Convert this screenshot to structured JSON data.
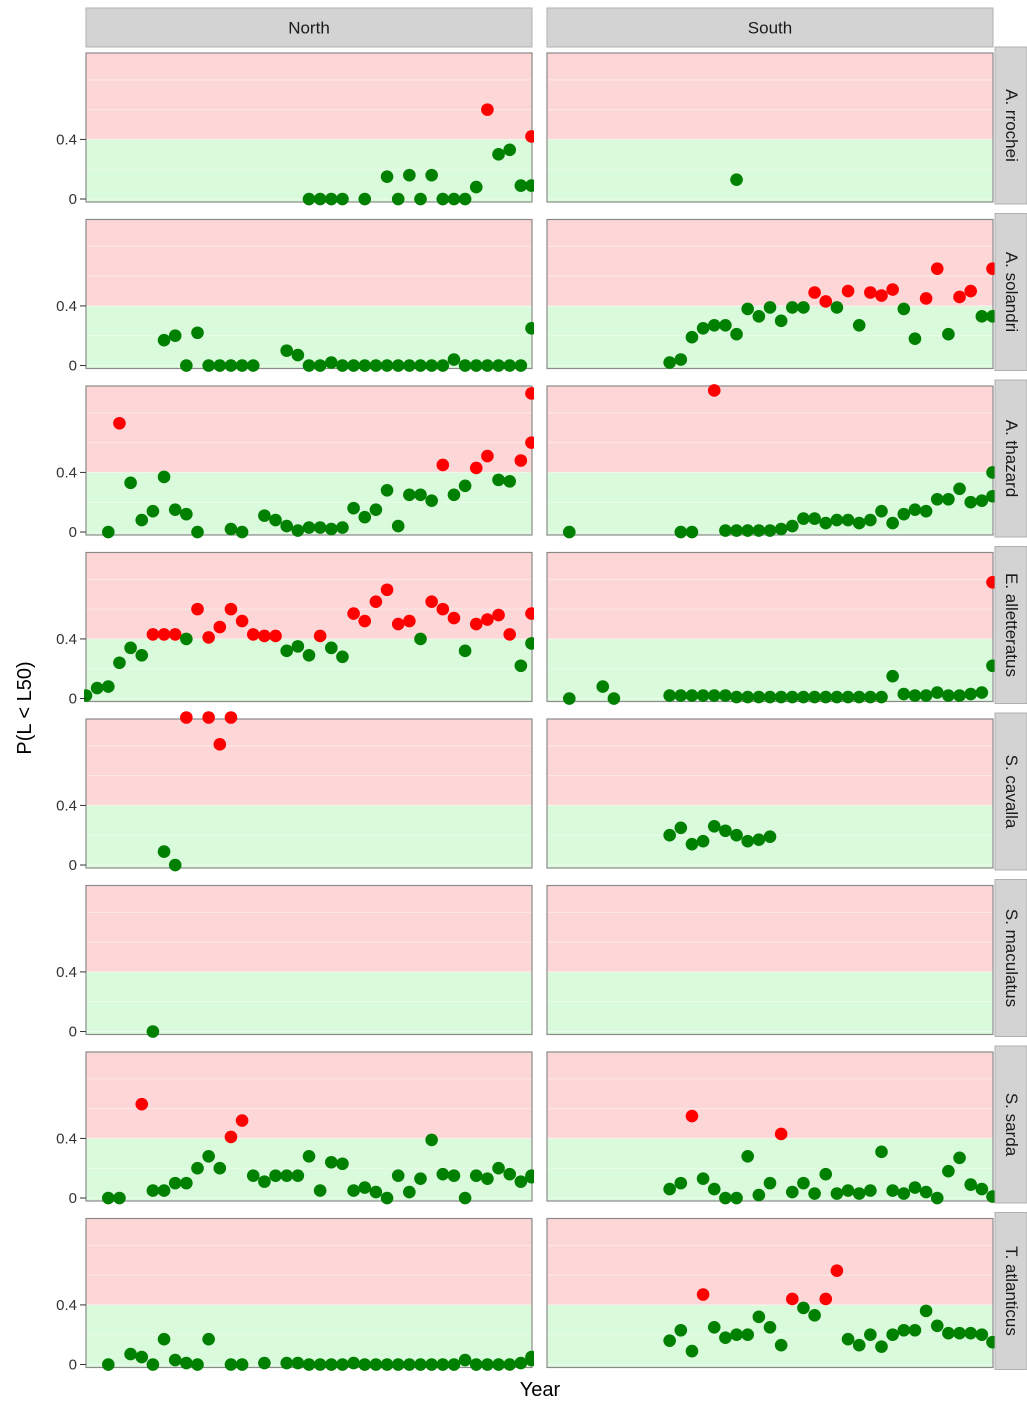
{
  "chart_data": {
    "type": "scatter",
    "facets": {
      "columns": [
        "North",
        "South"
      ],
      "rows": [
        "A. rrochei",
        "A. solandri",
        "A. thazard",
        "E. alletteratus",
        "S. cavalla",
        "S. maculatus",
        "S. sarda",
        "T. atlanticus"
      ]
    },
    "xlabel": "Year",
    "ylabel": "P(L < L50)",
    "yticks": [
      0,
      0.4
    ],
    "ylim": [
      -0.02,
      0.98
    ],
    "threshold": 0.4,
    "x_ticks_labeled": false,
    "x_index_range": [
      0,
      40
    ],
    "bands": {
      "below_threshold_color": "#d9fadb",
      "above_threshold_color": "#fdd7d7"
    },
    "point_colors": {
      "below_threshold": "#008000",
      "above_threshold": "#ff0000"
    },
    "strip_color": "#d3d3d3",
    "panels": [
      {
        "row": "A. rrochei",
        "col": "North",
        "x": [
          20,
          21,
          22,
          23,
          25,
          27,
          28,
          29,
          30,
          31,
          32,
          33,
          34,
          35,
          36,
          37,
          38,
          39,
          40,
          40
        ],
        "y": [
          0,
          0,
          0,
          0,
          0,
          0.15,
          0,
          0.16,
          0,
          0.16,
          0,
          0,
          0,
          0.08,
          0.6,
          0.3,
          0.33,
          0.09,
          0.09,
          0.42
        ]
      },
      {
        "row": "A. rrochei",
        "col": "South",
        "x": [
          17
        ],
        "y": [
          0.13
        ]
      },
      {
        "row": "A. solandri",
        "col": "North",
        "x": [
          7,
          8,
          9,
          10,
          11,
          12,
          13,
          14,
          15,
          18,
          19,
          20,
          21,
          22,
          23,
          24,
          25,
          26,
          27,
          28,
          29,
          30,
          31,
          32,
          33,
          34,
          35,
          36,
          37,
          38,
          39,
          40
        ],
        "y": [
          0.17,
          0.2,
          0,
          0.22,
          0,
          0,
          0,
          0,
          0,
          0.1,
          0.07,
          0,
          0,
          0.02,
          0,
          0,
          0,
          0,
          0,
          0,
          0,
          0,
          0,
          0,
          0.04,
          0,
          0,
          0,
          0,
          0,
          0,
          0.25
        ]
      },
      {
        "row": "A. solandri",
        "col": "South",
        "x": [
          11,
          12,
          13,
          14,
          15,
          16,
          17,
          18,
          19,
          20,
          21,
          22,
          23,
          24,
          25,
          26,
          27,
          28,
          29,
          30,
          31,
          32,
          33,
          34,
          35,
          36,
          37,
          38,
          39,
          40,
          40
        ],
        "y": [
          0.02,
          0.04,
          0.19,
          0.25,
          0.27,
          0.27,
          0.21,
          0.38,
          0.33,
          0.39,
          0.3,
          0.39,
          0.39,
          0.49,
          0.43,
          0.39,
          0.5,
          0.27,
          0.49,
          0.47,
          0.51,
          0.38,
          0.18,
          0.45,
          0.65,
          0.21,
          0.46,
          0.5,
          0.33,
          0.65,
          0.33
        ]
      },
      {
        "row": "A. thazard",
        "col": "North",
        "x": [
          2,
          3,
          4,
          5,
          6,
          7,
          8,
          9,
          10,
          13,
          14,
          16,
          17,
          18,
          19,
          20,
          21,
          22,
          23,
          24,
          25,
          26,
          27,
          28,
          29,
          30,
          31,
          32,
          33,
          34,
          35,
          36,
          37,
          38,
          39,
          40,
          40
        ],
        "y": [
          0,
          0.73,
          0.33,
          0.08,
          0.14,
          0.37,
          0.15,
          0.12,
          0,
          0.02,
          0,
          0.11,
          0.08,
          0.04,
          0.01,
          0.03,
          0.03,
          0.02,
          0.03,
          0.16,
          0.1,
          0.15,
          0.28,
          0.04,
          0.25,
          0.25,
          0.21,
          0.45,
          0.25,
          0.31,
          0.43,
          0.51,
          0.35,
          0.34,
          0.48,
          0.93,
          0.6
        ]
      },
      {
        "row": "A. thazard",
        "col": "South",
        "x": [
          2,
          12,
          13,
          15,
          16,
          17,
          18,
          19,
          20,
          21,
          22,
          23,
          24,
          25,
          26,
          27,
          28,
          29,
          30,
          31,
          32,
          33,
          34,
          35,
          36,
          37,
          38,
          39,
          40,
          40
        ],
        "y": [
          0,
          0,
          0,
          0.95,
          0.01,
          0.01,
          0.01,
          0.01,
          0.01,
          0.02,
          0.04,
          0.09,
          0.09,
          0.06,
          0.08,
          0.08,
          0.06,
          0.08,
          0.14,
          0.06,
          0.12,
          0.15,
          0.14,
          0.22,
          0.22,
          0.29,
          0.2,
          0.21,
          0.24,
          0.4
        ]
      },
      {
        "row": "E. alletteratus",
        "col": "North",
        "x": [
          0,
          1,
          2,
          3,
          4,
          5,
          6,
          7,
          8,
          9,
          10,
          11,
          12,
          13,
          14,
          15,
          16,
          17,
          18,
          19,
          20,
          21,
          22,
          23,
          24,
          25,
          26,
          27,
          28,
          29,
          30,
          31,
          32,
          33,
          34,
          35,
          36,
          37,
          38,
          39,
          40,
          40
        ],
        "y": [
          0.02,
          0.07,
          0.08,
          0.24,
          0.34,
          0.29,
          0.43,
          0.43,
          0.43,
          0.4,
          0.6,
          0.41,
          0.48,
          0.6,
          0.52,
          0.43,
          0.42,
          0.42,
          0.32,
          0.35,
          0.29,
          0.42,
          0.34,
          0.28,
          0.57,
          0.52,
          0.65,
          0.73,
          0.5,
          0.52,
          0.4,
          0.65,
          0.6,
          0.54,
          0.32,
          0.5,
          0.53,
          0.56,
          0.43,
          0.22,
          0.37,
          0.57
        ]
      },
      {
        "row": "E. alletteratus",
        "col": "South",
        "x": [
          2,
          5,
          6,
          11,
          12,
          13,
          14,
          15,
          16,
          17,
          18,
          19,
          20,
          21,
          22,
          23,
          24,
          25,
          26,
          27,
          28,
          29,
          30,
          31,
          32,
          33,
          34,
          35,
          36,
          37,
          38,
          39,
          40,
          40
        ],
        "y": [
          0,
          0.08,
          0,
          0.02,
          0.02,
          0.02,
          0.02,
          0.02,
          0.02,
          0.01,
          0.01,
          0.01,
          0.01,
          0.01,
          0.01,
          0.01,
          0.01,
          0.01,
          0.01,
          0.01,
          0.01,
          0.01,
          0.01,
          0.15,
          0.03,
          0.02,
          0.02,
          0.04,
          0.02,
          0.02,
          0.03,
          0.04,
          0.22,
          0.78
        ]
      },
      {
        "row": "S. cavalla",
        "col": "North",
        "x": [
          7,
          8,
          9,
          11,
          12,
          13
        ],
        "y": [
          0.09,
          0,
          0.99,
          0.99,
          0.81,
          0.99
        ]
      },
      {
        "row": "S. cavalla",
        "col": "South",
        "x": [
          11,
          12,
          13,
          14,
          15,
          16,
          17,
          18,
          19,
          20
        ],
        "y": [
          0.2,
          0.25,
          0.14,
          0.16,
          0.26,
          0.23,
          0.2,
          0.16,
          0.17,
          0.19
        ]
      },
      {
        "row": "S. maculatus",
        "col": "North",
        "x": [
          6
        ],
        "y": [
          0
        ]
      },
      {
        "row": "S. sarda",
        "col": "North",
        "x": [
          2,
          3,
          5,
          6,
          7,
          8,
          9,
          10,
          11,
          12,
          13,
          14,
          15,
          16,
          17,
          18,
          19,
          20,
          21,
          22,
          23,
          24,
          25,
          26,
          27,
          28,
          29,
          30,
          31,
          32,
          33,
          34,
          35,
          36,
          37,
          38,
          39,
          40,
          40
        ],
        "y": [
          0,
          0,
          0.63,
          0.05,
          0.05,
          0.1,
          0.1,
          0.2,
          0.28,
          0.2,
          0.41,
          0.52,
          0.15,
          0.11,
          0.15,
          0.15,
          0.15,
          0.28,
          0.05,
          0.24,
          0.23,
          0.05,
          0.07,
          0.04,
          0,
          0.15,
          0.04,
          0.13,
          0.39,
          0.16,
          0.15,
          0,
          0.15,
          0.13,
          0.2,
          0.16,
          0.11,
          0.14,
          0.15
        ]
      },
      {
        "row": "S. sarda",
        "col": "South",
        "x": [
          11,
          12,
          13,
          14,
          15,
          16,
          17,
          18,
          19,
          20,
          21,
          22,
          23,
          24,
          25,
          26,
          27,
          28,
          29,
          30,
          31,
          32,
          33,
          34,
          35,
          36,
          37,
          38,
          39,
          40
        ],
        "y": [
          0.06,
          0.1,
          0.55,
          0.13,
          0.06,
          0,
          0,
          0.28,
          0.02,
          0.1,
          0.43,
          0.04,
          0.1,
          0.03,
          0.16,
          0.03,
          0.05,
          0.03,
          0.05,
          0.31,
          0.05,
          0.03,
          0.07,
          0.04,
          0,
          0.18,
          0.27,
          0.09,
          0.06,
          0.01
        ]
      },
      {
        "row": "T. atlanticus",
        "col": "North",
        "x": [
          2,
          4,
          5,
          6,
          7,
          8,
          9,
          10,
          11,
          13,
          14,
          16,
          18,
          19,
          20,
          21,
          22,
          23,
          24,
          25,
          26,
          27,
          28,
          29,
          30,
          31,
          32,
          33,
          34,
          35,
          36,
          37,
          38,
          39,
          40,
          40
        ],
        "y": [
          0,
          0.07,
          0.05,
          0,
          0.17,
          0.03,
          0.01,
          0,
          0.17,
          0,
          0,
          0.01,
          0.01,
          0.01,
          0,
          0,
          0,
          0,
          0.01,
          0,
          0,
          0,
          0,
          0,
          0,
          0,
          0,
          0,
          0.03,
          0,
          0,
          0,
          0,
          0.01,
          0.03,
          0.05
        ]
      },
      {
        "row": "T. atlanticus",
        "col": "South",
        "x": [
          11,
          12,
          13,
          14,
          15,
          16,
          17,
          18,
          19,
          20,
          21,
          22,
          23,
          24,
          25,
          26,
          27,
          28,
          29,
          30,
          31,
          32,
          33,
          34,
          35,
          36,
          37,
          38,
          39,
          40
        ],
        "y": [
          0.16,
          0.23,
          0.09,
          0.47,
          0.25,
          0.18,
          0.2,
          0.2,
          0.32,
          0.25,
          0.13,
          0.44,
          0.38,
          0.33,
          0.44,
          0.63,
          0.17,
          0.13,
          0.2,
          0.12,
          0.2,
          0.23,
          0.23,
          0.36,
          0.26,
          0.21,
          0.21,
          0.21,
          0.2,
          0.15
        ]
      }
    ]
  }
}
